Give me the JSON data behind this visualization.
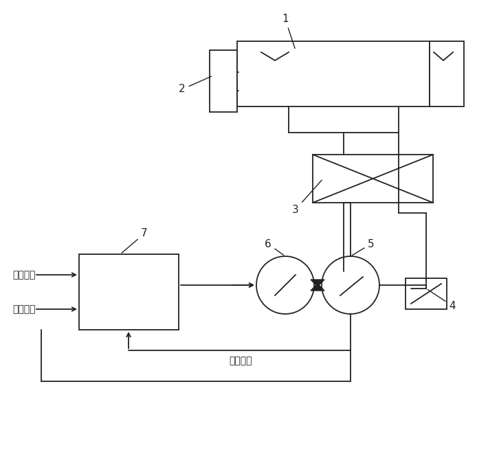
{
  "bg_color": "#ffffff",
  "line_color": "#222222",
  "lw": 1.3,
  "font_size": 11,
  "label_font_size": 10,
  "chinese": {
    "pressure_label": "压力设定",
    "speed_label": "速度设定",
    "feedback_label": "反馈压力"
  }
}
